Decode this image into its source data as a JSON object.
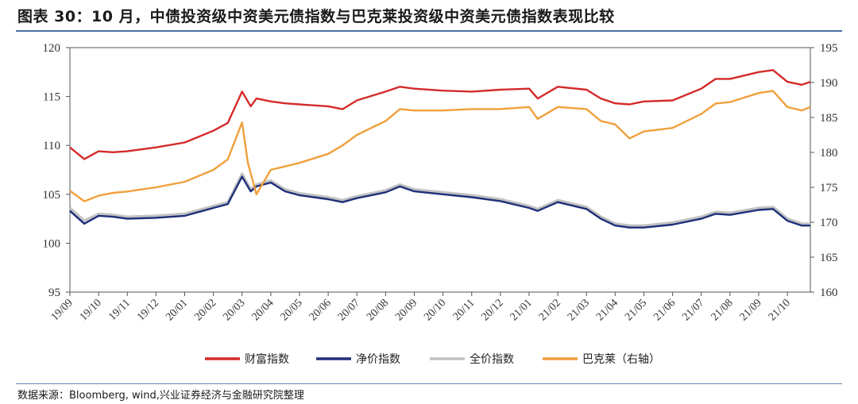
{
  "title": "图表 30：10 月，中债投资级中资美元债指数与巴克莱投资级中资美元债指数表现比较",
  "source": "数据来源：Bloomberg, wind,兴业证券经济与金融研究院整理",
  "chart_data": {
    "type": "line",
    "y_left": {
      "min": 95,
      "max": 120,
      "ticks": [
        95,
        100,
        105,
        110,
        115,
        120
      ]
    },
    "y_right": {
      "min": 160,
      "max": 195,
      "ticks": [
        160,
        165,
        170,
        175,
        180,
        185,
        190,
        195
      ]
    },
    "x_labels": [
      "19/09",
      "19/10",
      "19/11",
      "19/12",
      "20/01",
      "20/02",
      "20/03",
      "20/04",
      "20/05",
      "20/06",
      "20/07",
      "20/08",
      "20/09",
      "20/10",
      "20/11",
      "20/12",
      "21/01",
      "21/02",
      "21/03",
      "21/04",
      "21/05",
      "21/06",
      "21/07",
      "21/08",
      "21/09",
      "21/10"
    ],
    "x_range": [
      0,
      25.8
    ],
    "series": [
      {
        "name": "财富指数",
        "color": "#d42a2a",
        "axis": "left",
        "points": [
          [
            0,
            109.8
          ],
          [
            0.5,
            108.6
          ],
          [
            1,
            109.4
          ],
          [
            1.5,
            109.3
          ],
          [
            2,
            109.4
          ],
          [
            3,
            109.8
          ],
          [
            4,
            110.3
          ],
          [
            5,
            111.5
          ],
          [
            5.5,
            112.3
          ],
          [
            6,
            115.5
          ],
          [
            6.3,
            114.0
          ],
          [
            6.5,
            114.8
          ],
          [
            7,
            114.5
          ],
          [
            7.5,
            114.3
          ],
          [
            8,
            114.2
          ],
          [
            9,
            114.0
          ],
          [
            9.5,
            113.7
          ],
          [
            10,
            114.6
          ],
          [
            11,
            115.5
          ],
          [
            11.5,
            116.0
          ],
          [
            12,
            115.8
          ],
          [
            13,
            115.6
          ],
          [
            14,
            115.5
          ],
          [
            15,
            115.7
          ],
          [
            16,
            115.8
          ],
          [
            16.3,
            114.8
          ],
          [
            17,
            116.0
          ],
          [
            18,
            115.7
          ],
          [
            18.5,
            114.8
          ],
          [
            19,
            114.3
          ],
          [
            19.5,
            114.2
          ],
          [
            20,
            114.5
          ],
          [
            21,
            114.6
          ],
          [
            22,
            115.8
          ],
          [
            22.5,
            116.8
          ],
          [
            23,
            116.8
          ],
          [
            24,
            117.5
          ],
          [
            24.5,
            117.7
          ],
          [
            25,
            116.5
          ],
          [
            25.5,
            116.2
          ],
          [
            25.8,
            116.5
          ]
        ]
      },
      {
        "name": "净价指数",
        "color": "#1f2f7a",
        "axis": "left",
        "points": [
          [
            0,
            103.3
          ],
          [
            0.5,
            102.0
          ],
          [
            1,
            102.8
          ],
          [
            1.5,
            102.7
          ],
          [
            2,
            102.5
          ],
          [
            3,
            102.6
          ],
          [
            4,
            102.8
          ],
          [
            5,
            103.6
          ],
          [
            5.5,
            104.0
          ],
          [
            6,
            106.8
          ],
          [
            6.3,
            105.3
          ],
          [
            6.5,
            105.8
          ],
          [
            7,
            106.2
          ],
          [
            7.5,
            105.3
          ],
          [
            8,
            104.9
          ],
          [
            9,
            104.5
          ],
          [
            9.5,
            104.2
          ],
          [
            10,
            104.6
          ],
          [
            11,
            105.2
          ],
          [
            11.5,
            105.8
          ],
          [
            12,
            105.3
          ],
          [
            13,
            105.0
          ],
          [
            14,
            104.7
          ],
          [
            15,
            104.3
          ],
          [
            16,
            103.6
          ],
          [
            16.3,
            103.3
          ],
          [
            17,
            104.2
          ],
          [
            18,
            103.5
          ],
          [
            18.5,
            102.5
          ],
          [
            19,
            101.8
          ],
          [
            19.5,
            101.6
          ],
          [
            20,
            101.6
          ],
          [
            21,
            101.9
          ],
          [
            22,
            102.5
          ],
          [
            22.5,
            103.0
          ],
          [
            23,
            102.9
          ],
          [
            24,
            103.4
          ],
          [
            24.5,
            103.5
          ],
          [
            25,
            102.3
          ],
          [
            25.5,
            101.8
          ],
          [
            25.8,
            101.8
          ]
        ]
      },
      {
        "name": "全价指数",
        "color": "#c2c2c2",
        "axis": "left",
        "points": [
          [
            0,
            103.6
          ],
          [
            0.5,
            102.3
          ],
          [
            1,
            103.0
          ],
          [
            1.5,
            102.9
          ],
          [
            2,
            102.7
          ],
          [
            3,
            102.8
          ],
          [
            4,
            103.0
          ],
          [
            5,
            103.8
          ],
          [
            5.5,
            104.2
          ],
          [
            6,
            107.1
          ],
          [
            6.3,
            105.5
          ],
          [
            6.5,
            106.0
          ],
          [
            7,
            106.4
          ],
          [
            7.5,
            105.5
          ],
          [
            8,
            105.1
          ],
          [
            9,
            104.7
          ],
          [
            9.5,
            104.4
          ],
          [
            10,
            104.8
          ],
          [
            11,
            105.4
          ],
          [
            11.5,
            106.0
          ],
          [
            12,
            105.5
          ],
          [
            13,
            105.2
          ],
          [
            14,
            104.9
          ],
          [
            15,
            104.5
          ],
          [
            16,
            103.8
          ],
          [
            16.3,
            103.5
          ],
          [
            17,
            104.4
          ],
          [
            18,
            103.7
          ],
          [
            18.5,
            102.7
          ],
          [
            19,
            102.0
          ],
          [
            19.5,
            101.8
          ],
          [
            20,
            101.8
          ],
          [
            21,
            102.1
          ],
          [
            22,
            102.7
          ],
          [
            22.5,
            103.2
          ],
          [
            23,
            103.1
          ],
          [
            24,
            103.6
          ],
          [
            24.5,
            103.7
          ],
          [
            25,
            102.5
          ],
          [
            25.5,
            102.0
          ],
          [
            25.8,
            102.0
          ]
        ]
      },
      {
        "name": "巴克莱（右轴）",
        "color": "#f0a03c",
        "axis": "right",
        "points": [
          [
            0,
            174.5
          ],
          [
            0.5,
            173.0
          ],
          [
            1,
            173.8
          ],
          [
            1.5,
            174.2
          ],
          [
            2,
            174.4
          ],
          [
            3,
            175.0
          ],
          [
            4,
            175.8
          ],
          [
            5,
            177.5
          ],
          [
            5.5,
            179.0
          ],
          [
            6,
            184.3
          ],
          [
            6.2,
            178.5
          ],
          [
            6.5,
            174.0
          ],
          [
            7,
            177.5
          ],
          [
            7.5,
            178.0
          ],
          [
            8,
            178.5
          ],
          [
            9,
            179.8
          ],
          [
            9.5,
            181.0
          ],
          [
            10,
            182.5
          ],
          [
            11,
            184.5
          ],
          [
            11.5,
            186.2
          ],
          [
            12,
            186.0
          ],
          [
            13,
            186.0
          ],
          [
            14,
            186.2
          ],
          [
            15,
            186.2
          ],
          [
            16,
            186.5
          ],
          [
            16.3,
            184.8
          ],
          [
            17,
            186.5
          ],
          [
            18,
            186.2
          ],
          [
            18.5,
            184.5
          ],
          [
            19,
            184.0
          ],
          [
            19.5,
            182.0
          ],
          [
            20,
            183.0
          ],
          [
            21,
            183.5
          ],
          [
            22,
            185.5
          ],
          [
            22.5,
            187.0
          ],
          [
            23,
            187.2
          ],
          [
            24,
            188.5
          ],
          [
            24.5,
            188.8
          ],
          [
            25,
            186.5
          ],
          [
            25.5,
            186.0
          ],
          [
            25.8,
            186.5
          ]
        ]
      }
    ]
  }
}
